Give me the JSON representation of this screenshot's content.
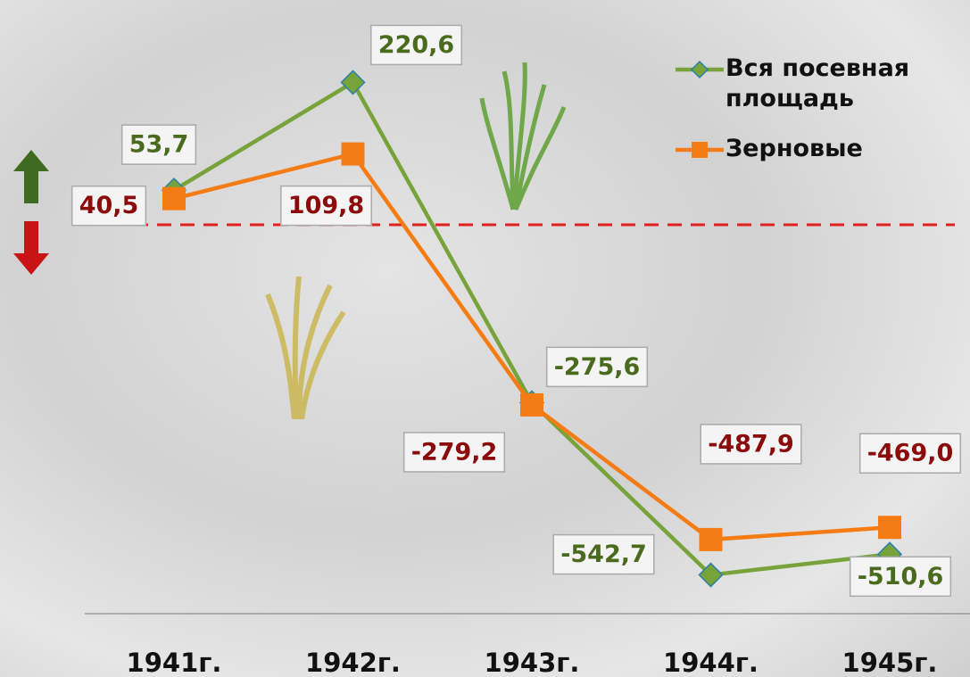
{
  "chart_data": {
    "type": "line",
    "categories": [
      "1941г.",
      "1942г.",
      "1943г.",
      "1944г.",
      "1945г."
    ],
    "series": [
      {
        "name": "Вся посевная площадь",
        "color": "#77a33a",
        "marker": "diamond",
        "label_color": "#4a6b1e",
        "values": [
          53.7,
          220.6,
          -275.6,
          -542.7,
          -510.6
        ],
        "value_labels": [
          "53,7",
          "220,6",
          "-275,6",
          "-542,7",
          "-510,6"
        ]
      },
      {
        "name": "Зерновые",
        "color": "#f57c14",
        "marker": "square",
        "label_color": "#8b0a0a",
        "values": [
          40.5,
          109.8,
          -279.2,
          -487.9,
          -469.0
        ],
        "value_labels": [
          "40,5",
          "109,8",
          "-279,2",
          "-487,9",
          "-469,0"
        ]
      }
    ],
    "ylim": [
      -600,
      300
    ],
    "zero_line": {
      "value": 0,
      "color": "#e02020"
    },
    "legend": "top-right"
  }
}
